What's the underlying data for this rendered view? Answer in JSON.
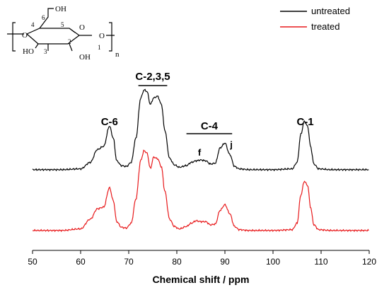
{
  "chart_data": {
    "type": "line",
    "xlabel": "Chemical shift / ppm",
    "ylabel": "",
    "xlim": [
      50,
      120
    ],
    "x_ticks": [
      "50",
      "60",
      "70",
      "80",
      "90",
      "100",
      "110",
      "120"
    ],
    "grid": false,
    "legend_position": "top-right",
    "series": [
      {
        "name": "untreated",
        "color": "#000000",
        "points": [
          [
            50,
            0.01
          ],
          [
            56,
            0.01
          ],
          [
            60,
            0.02
          ],
          [
            62,
            0.1
          ],
          [
            63.5,
            0.26
          ],
          [
            64.8,
            0.3
          ],
          [
            66,
            0.55
          ],
          [
            66.8,
            0.4
          ],
          [
            67.5,
            0.12
          ],
          [
            68.5,
            0.06
          ],
          [
            69.5,
            0.05
          ],
          [
            70.5,
            0.1
          ],
          [
            71.5,
            0.4
          ],
          [
            72.5,
            0.9
          ],
          [
            73.2,
            1.0
          ],
          [
            73.8,
            0.98
          ],
          [
            74.5,
            0.82
          ],
          [
            75.2,
            0.9
          ],
          [
            76,
            0.92
          ],
          [
            76.8,
            0.82
          ],
          [
            77.5,
            0.5
          ],
          [
            78.5,
            0.15
          ],
          [
            79.5,
            0.07
          ],
          [
            80.5,
            0.04
          ],
          [
            82,
            0.06
          ],
          [
            83,
            0.1
          ],
          [
            84,
            0.12
          ],
          [
            85,
            0.13
          ],
          [
            86,
            0.12
          ],
          [
            87,
            0.08
          ],
          [
            88,
            0.09
          ],
          [
            89,
            0.28
          ],
          [
            90,
            0.34
          ],
          [
            91,
            0.2
          ],
          [
            92,
            0.05
          ],
          [
            93,
            0.02
          ],
          [
            95,
            0.01
          ],
          [
            100,
            0.01
          ],
          [
            104,
            0.02
          ],
          [
            105,
            0.1
          ],
          [
            105.8,
            0.45
          ],
          [
            106.5,
            0.61
          ],
          [
            107.2,
            0.55
          ],
          [
            107.8,
            0.3
          ],
          [
            108.5,
            0.08
          ],
          [
            109.5,
            0.02
          ],
          [
            112,
            0.01
          ],
          [
            120,
            0.01
          ]
        ]
      },
      {
        "name": "treated",
        "color": "#e8191b",
        "points": [
          [
            50,
            0.01
          ],
          [
            56,
            0.01
          ],
          [
            60,
            0.03
          ],
          [
            62,
            0.15
          ],
          [
            63.5,
            0.28
          ],
          [
            64.8,
            0.3
          ],
          [
            66,
            0.54
          ],
          [
            66.8,
            0.38
          ],
          [
            67.5,
            0.12
          ],
          [
            68.5,
            0.05
          ],
          [
            69.5,
            0.04
          ],
          [
            70.5,
            0.1
          ],
          [
            71.5,
            0.4
          ],
          [
            72.5,
            0.88
          ],
          [
            73.2,
            1.0
          ],
          [
            73.8,
            0.97
          ],
          [
            74.5,
            0.78
          ],
          [
            75.2,
            0.92
          ],
          [
            76,
            0.9
          ],
          [
            76.8,
            0.8
          ],
          [
            77.5,
            0.5
          ],
          [
            78.5,
            0.15
          ],
          [
            79.5,
            0.06
          ],
          [
            80.5,
            0.03
          ],
          [
            82,
            0.06
          ],
          [
            83,
            0.1
          ],
          [
            84,
            0.13
          ],
          [
            85,
            0.12
          ],
          [
            86,
            0.12
          ],
          [
            87,
            0.08
          ],
          [
            88,
            0.09
          ],
          [
            89,
            0.26
          ],
          [
            90,
            0.33
          ],
          [
            91,
            0.22
          ],
          [
            92,
            0.06
          ],
          [
            93,
            0.02
          ],
          [
            95,
            0.01
          ],
          [
            100,
            0.01
          ],
          [
            104,
            0.02
          ],
          [
            105,
            0.1
          ],
          [
            105.8,
            0.45
          ],
          [
            106.5,
            0.62
          ],
          [
            107.2,
            0.57
          ],
          [
            107.8,
            0.3
          ],
          [
            108.5,
            0.08
          ],
          [
            109.5,
            0.02
          ],
          [
            112,
            0.01
          ],
          [
            120,
            0.01
          ]
        ]
      }
    ],
    "annotations": {
      "c6": {
        "text": "C-6",
        "x": 66
      },
      "c235": {
        "text": "C-2,3,5",
        "x1": 72,
        "x2": 78
      },
      "c4": {
        "text": "C-4",
        "x1": 82,
        "x2": 91.5
      },
      "f": {
        "text": "f",
        "x": 85
      },
      "j": {
        "text": "j",
        "x": 90
      },
      "c1": {
        "text": "C-1",
        "x": 106.7
      }
    }
  },
  "structure": {
    "oh_top": "OH",
    "oh_left": "HO",
    "oh_bottom": "OH",
    "ring_o": "O",
    "bridge_o_left": "O",
    "bridge_o_right": "O",
    "n": "n",
    "num1": "1",
    "num2": "2",
    "num3": "3",
    "num4": "4",
    "num5": "5",
    "num6": "6"
  }
}
